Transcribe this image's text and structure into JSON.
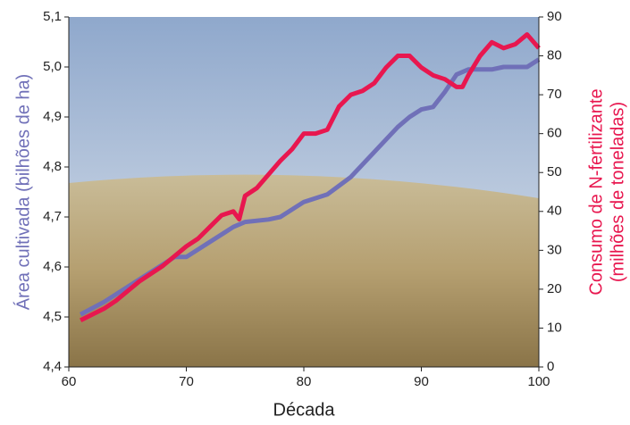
{
  "chart_data": {
    "type": "line",
    "xlabel": "Década",
    "ylabel": "Área cultivada (bilhões de ha)",
    "y2label": [
      "Consumo de N-fertilizante",
      "(milhões de toneladas)"
    ],
    "xlim": [
      60,
      100
    ],
    "xticks": [
      60,
      70,
      80,
      90,
      100
    ],
    "ylim": [
      4.4,
      5.1
    ],
    "yticks": [
      {
        "value": 4.4,
        "label": "4,4"
      },
      {
        "value": 4.5,
        "label": "4,5"
      },
      {
        "value": 4.6,
        "label": "4,6"
      },
      {
        "value": 4.7,
        "label": "4,7"
      },
      {
        "value": 4.8,
        "label": "4,8"
      },
      {
        "value": 4.9,
        "label": "4,9"
      },
      {
        "value": 5.0,
        "label": "5,0"
      },
      {
        "value": 5.1,
        "label": "5,1"
      }
    ],
    "y2lim": [
      0,
      90
    ],
    "y2ticks": [
      0,
      10,
      20,
      30,
      40,
      50,
      60,
      70,
      80,
      90
    ],
    "series": [
      {
        "color": "#7070b8",
        "axis": "y",
        "x": [
          61,
          63,
          65,
          67,
          69,
          70,
          72,
          74,
          75,
          77,
          78,
          80,
          82,
          84,
          86,
          88,
          89,
          90,
          91,
          92,
          93,
          94,
          96,
          97,
          99,
          100
        ],
        "values": [
          4.505,
          4.53,
          4.56,
          4.59,
          4.62,
          4.62,
          4.65,
          4.68,
          4.69,
          4.695,
          4.7,
          4.73,
          4.745,
          4.78,
          4.83,
          4.88,
          4.9,
          4.915,
          4.92,
          4.95,
          4.985,
          4.995,
          4.995,
          5.0,
          5.0,
          5.015
        ]
      },
      {
        "color": "#e8174f",
        "axis": "y2",
        "x": [
          61,
          63,
          64,
          66,
          68,
          70,
          71,
          72,
          73,
          74,
          74.5,
          75,
          76,
          78,
          79,
          80,
          81,
          82,
          83,
          84,
          85,
          86,
          87,
          88,
          89,
          90,
          91,
          92,
          93,
          93.5,
          94,
          95,
          96,
          97,
          98,
          99,
          100
        ],
        "values": [
          12,
          15,
          17,
          22,
          26,
          31,
          33,
          36,
          39,
          40,
          38,
          44,
          46,
          53,
          56,
          60,
          60,
          61,
          67,
          70,
          71,
          73,
          77,
          80,
          80,
          77,
          75,
          74,
          72,
          72,
          75,
          80,
          83.5,
          82,
          83,
          85.5,
          82
        ]
      }
    ]
  }
}
